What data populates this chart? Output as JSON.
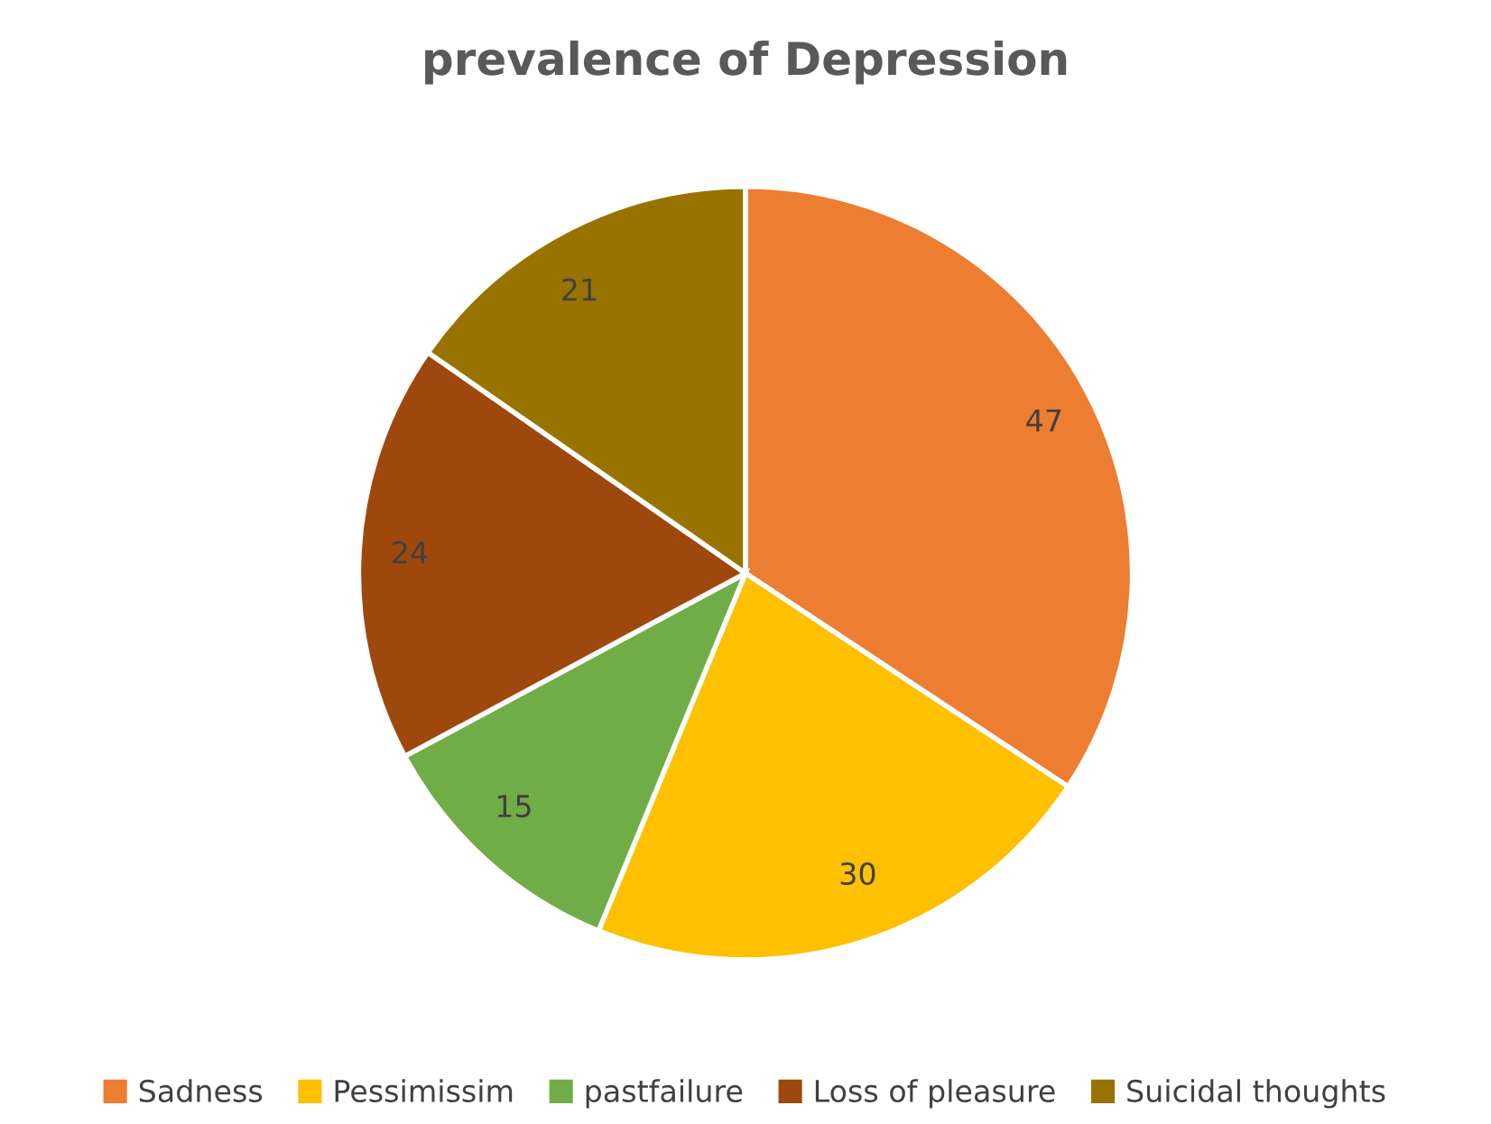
{
  "chart_data": {
    "type": "pie",
    "title": "prevalence of Depression",
    "categories": [
      "Sadness",
      "Pessimissim",
      "pastfailure",
      "Loss of pleasure",
      "Suicidal thoughts"
    ],
    "values": [
      47,
      30,
      15,
      24,
      21
    ],
    "colors": [
      "#ed7d31",
      "#ffc000",
      "#70ad47",
      "#9e480e",
      "#997300"
    ],
    "data_labels": true,
    "legend": "bottom"
  }
}
